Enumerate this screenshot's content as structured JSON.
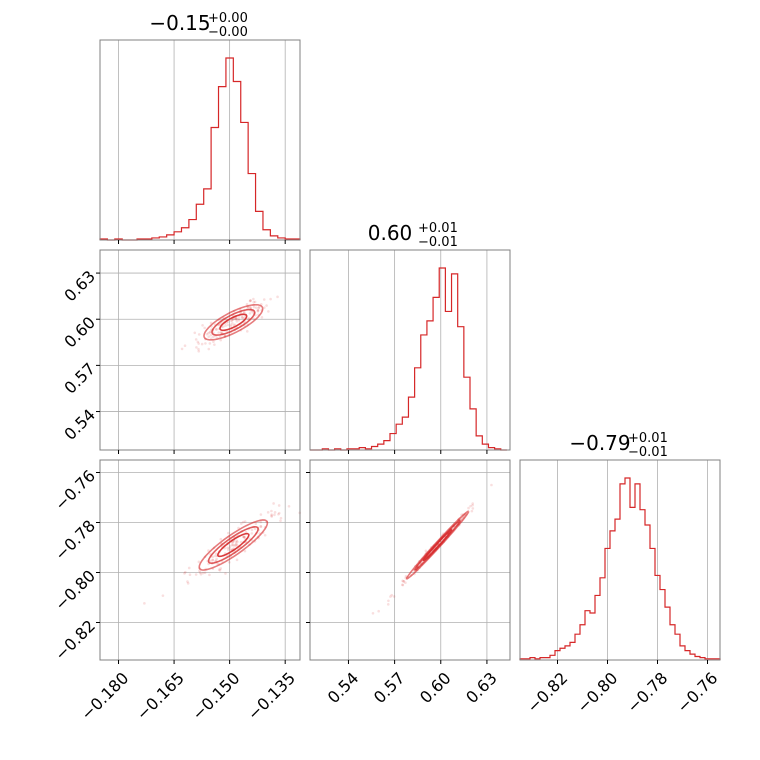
{
  "colors": {
    "series": "#d62728",
    "grid": "#b0b0b0",
    "frame": "#808080"
  },
  "chart_data": {
    "type": "corner",
    "parameters": [
      {
        "title": {
          "median": "−0.15",
          "plus": "+0.00",
          "minus": "−0.00"
        },
        "range": [
          -0.185,
          -0.131
        ],
        "ticks": [
          -0.18,
          -0.165,
          -0.15,
          -0.135
        ],
        "tick_labels": [
          "−0.180",
          "−0.165",
          "−0.150",
          "−0.135"
        ],
        "histogram": {
          "bins": [
            -0.185,
            -0.183,
            -0.181,
            -0.179,
            -0.177,
            -0.175,
            -0.173,
            -0.171,
            -0.169,
            -0.167,
            -0.165,
            -0.163,
            -0.161,
            -0.159,
            -0.157,
            -0.155,
            -0.153,
            -0.151,
            -0.149,
            -0.147,
            -0.145,
            -0.143,
            -0.141,
            -0.139,
            -0.137,
            -0.135,
            -0.133,
            -0.131
          ],
          "counts": [
            1,
            0,
            1,
            0,
            0,
            1,
            1,
            2,
            3,
            5,
            8,
            12,
            20,
            35,
            50,
            110,
            150,
            178,
            155,
            115,
            65,
            28,
            10,
            4,
            2,
            1,
            1
          ]
        }
      },
      {
        "title": {
          "median": "0.60",
          "plus": "+0.01",
          "minus": "−0.01"
        },
        "range": [
          0.515,
          0.645
        ],
        "ticks": [
          0.54,
          0.57,
          0.6,
          0.63
        ],
        "tick_labels": [
          "0.54",
          "0.57",
          "0.60",
          "0.63"
        ],
        "histogram": {
          "bins": [
            0.515,
            0.519,
            0.523,
            0.527,
            0.531,
            0.535,
            0.539,
            0.543,
            0.547,
            0.551,
            0.555,
            0.559,
            0.563,
            0.567,
            0.571,
            0.575,
            0.579,
            0.583,
            0.587,
            0.591,
            0.595,
            0.599,
            0.603,
            0.607,
            0.611,
            0.615,
            0.619,
            0.623,
            0.627,
            0.631,
            0.635,
            0.639,
            0.643
          ],
          "counts": [
            0,
            0,
            1,
            0,
            1,
            0,
            1,
            1,
            2,
            1,
            3,
            5,
            8,
            14,
            22,
            28,
            45,
            70,
            98,
            110,
            130,
            155,
            118,
            150,
            105,
            62,
            35,
            12,
            5,
            2,
            1,
            0
          ]
        }
      },
      {
        "title": {
          "median": "−0.79",
          "plus": "+0.01",
          "minus": "−0.01"
        },
        "range": [
          -0.835,
          -0.755
        ],
        "ticks": [
          -0.82,
          -0.8,
          -0.78,
          -0.76
        ],
        "tick_labels": [
          "−0.82",
          "−0.80",
          "−0.78",
          "−0.76"
        ],
        "histogram": {
          "bins": [
            -0.835,
            -0.833,
            -0.831,
            -0.829,
            -0.827,
            -0.825,
            -0.823,
            -0.821,
            -0.819,
            -0.817,
            -0.815,
            -0.813,
            -0.811,
            -0.809,
            -0.807,
            -0.805,
            -0.803,
            -0.801,
            -0.799,
            -0.797,
            -0.795,
            -0.793,
            -0.791,
            -0.789,
            -0.787,
            -0.785,
            -0.783,
            -0.781,
            -0.779,
            -0.777,
            -0.775,
            -0.773,
            -0.771,
            -0.769,
            -0.767,
            -0.765,
            -0.763,
            -0.761,
            -0.759,
            -0.757,
            -0.755
          ],
          "counts": [
            1,
            1,
            2,
            1,
            2,
            2,
            4,
            8,
            10,
            12,
            15,
            22,
            30,
            42,
            40,
            55,
            70,
            95,
            110,
            120,
            150,
            155,
            130,
            150,
            128,
            115,
            95,
            72,
            60,
            45,
            30,
            22,
            12,
            8,
            5,
            3,
            2,
            1,
            1,
            1
          ]
        }
      }
    ],
    "correlations": [
      {
        "row": 1,
        "col": 0,
        "center": [
          -0.149,
          0.598
        ],
        "slope": 1.6,
        "spread_along": 0.006,
        "spread_perp": 0.002
      },
      {
        "row": 2,
        "col": 0,
        "center": [
          -0.149,
          -0.789
        ],
        "slope": 1.1,
        "spread_along": 0.006,
        "spread_perp": 0.0015
      },
      {
        "row": 2,
        "col": 1,
        "center": [
          0.598,
          -0.789
        ],
        "slope": 0.67,
        "spread_along": 0.011,
        "spread_perp": 0.0006
      }
    ]
  }
}
